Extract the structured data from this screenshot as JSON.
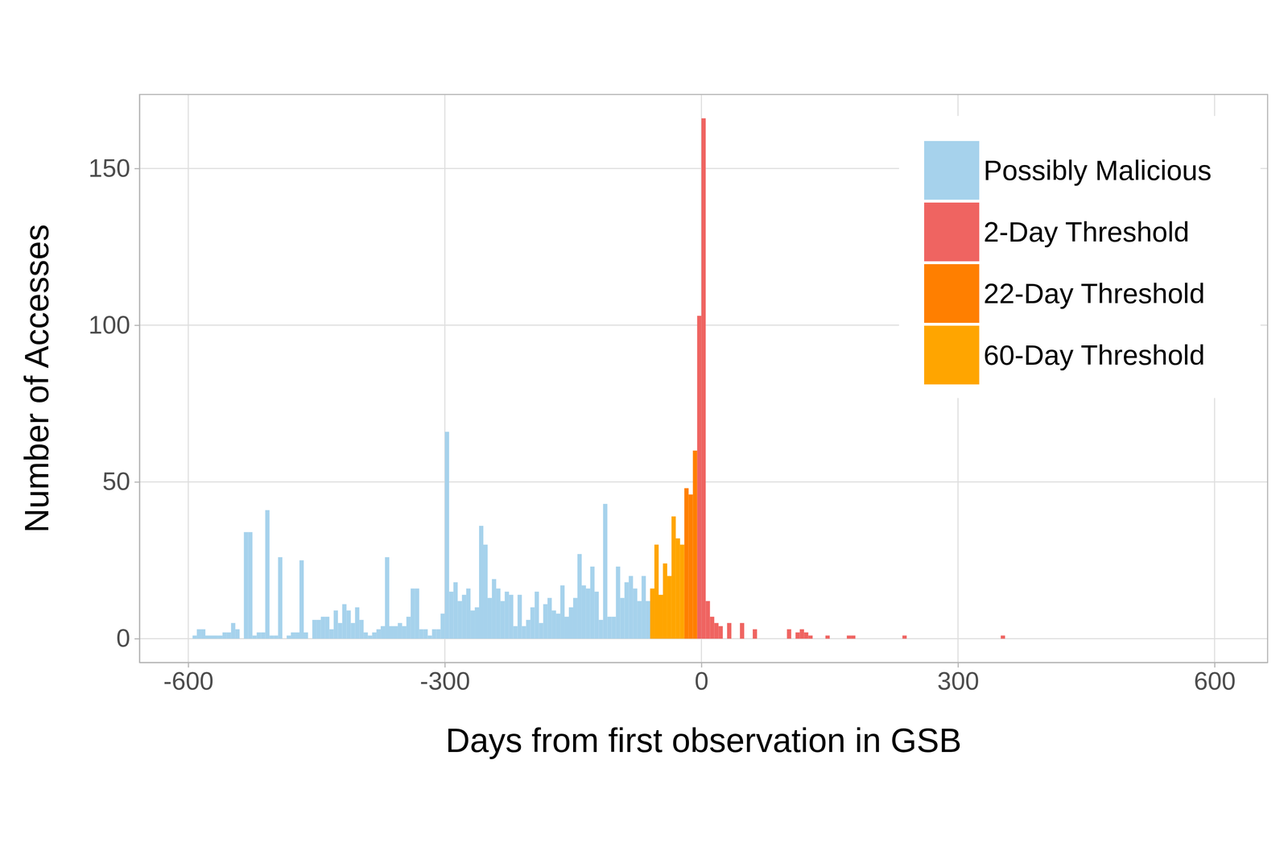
{
  "chart_data": {
    "type": "histogram",
    "x_label": "Days from first observation in GSB",
    "y_label": "Number of Accesses",
    "xlim": [
      -657,
      662
    ],
    "ylim": [
      -7.6,
      173.6
    ],
    "xticks": [
      -600,
      -300,
      0,
      300,
      600
    ],
    "yticks": [
      0,
      50,
      100,
      150
    ],
    "grid": true,
    "legend": "top-right",
    "series": [
      {
        "name": "Possibly Malicious",
        "color": "#a6d2ec",
        "bins": [
          -600,
          -595,
          -590,
          -585,
          -580,
          -575,
          -570,
          -565,
          -560,
          -555,
          -550,
          -545,
          -540,
          -535,
          -530,
          -525,
          -520,
          -515,
          -510,
          -505,
          -500,
          -495,
          -490,
          -485,
          -480,
          -475,
          -470,
          -465,
          -460,
          -455,
          -450,
          -445,
          -440,
          -435,
          -430,
          -425,
          -420,
          -415,
          -410,
          -405,
          -400,
          -395,
          -390,
          -385,
          -380,
          -375,
          -370,
          -365,
          -360,
          -355,
          -350,
          -345,
          -340,
          -335,
          -330,
          -325,
          -320,
          -315,
          -310,
          -305,
          -300,
          -295,
          -290,
          -285,
          -280,
          -275,
          -270,
          -265,
          -260,
          -255,
          -250,
          -245,
          -240,
          -235,
          -230,
          -225,
          -220,
          -215,
          -210,
          -205,
          -200,
          -195,
          -190,
          -185,
          -180,
          -175,
          -170,
          -165,
          -160,
          -155,
          -150,
          -145,
          -140,
          -135,
          -130,
          -125,
          -120,
          -115,
          -110,
          -105,
          -100,
          -95,
          -90,
          -85,
          -80,
          -75,
          -70,
          -65,
          -60
        ],
        "values": [
          0,
          1,
          3,
          3,
          1,
          1,
          1,
          1,
          2,
          2,
          5,
          3,
          0,
          34,
          34,
          1,
          2,
          2,
          41,
          1,
          1,
          26,
          0,
          1,
          2,
          2,
          25,
          2,
          0,
          6,
          6,
          7,
          7,
          3,
          9,
          5,
          11,
          9,
          5,
          10,
          6,
          2,
          1,
          2,
          3,
          4,
          26,
          4,
          4,
          5,
          4,
          7,
          16,
          16,
          3,
          3,
          1,
          3,
          3,
          8,
          66,
          15,
          18,
          12,
          14,
          16,
          9,
          10,
          36,
          30,
          13,
          19,
          16,
          12,
          15,
          14,
          4,
          14,
          4,
          6,
          10,
          15,
          5,
          11,
          13,
          9,
          8,
          17,
          7,
          10,
          13,
          27,
          17,
          16,
          23,
          15,
          6,
          43,
          7,
          7,
          23,
          13,
          18,
          20,
          16,
          12,
          20,
          12
        ]
      },
      {
        "name": "2-Day Threshold",
        "color": "#ef6461",
        "bins": [
          -5,
          0,
          5,
          10,
          15,
          20,
          25,
          30,
          35,
          40,
          45,
          50,
          55,
          60,
          65,
          70,
          75,
          80,
          85,
          90,
          95,
          100,
          105,
          110,
          115,
          120,
          125,
          130,
          135,
          140,
          145,
          150,
          155,
          160,
          165,
          170,
          175,
          180,
          185,
          190,
          195,
          200,
          205,
          210,
          215,
          220,
          225,
          230,
          235,
          240,
          245,
          250,
          255,
          260,
          265,
          270,
          275,
          280,
          285,
          290,
          295,
          300,
          305,
          310,
          315,
          320,
          325,
          330,
          335,
          340,
          345,
          350,
          355
        ],
        "values": [
          103,
          166,
          12,
          7,
          5,
          4,
          0,
          5,
          0,
          0,
          5,
          0,
          0,
          3,
          0,
          0,
          0,
          0,
          0,
          0,
          0,
          3,
          0,
          2,
          3,
          2,
          1,
          0,
          0,
          0,
          1,
          0,
          0,
          0,
          0,
          1,
          1,
          0,
          0,
          0,
          0,
          0,
          0,
          0,
          0,
          0,
          0,
          0,
          1,
          0,
          0,
          0,
          0,
          0,
          0,
          0,
          0,
          0,
          0,
          0,
          0,
          0,
          0,
          0,
          0,
          0,
          0,
          0,
          0,
          0,
          0,
          1
        ]
      },
      {
        "name": "22-Day Threshold",
        "color": "#ff7f00",
        "bins": [
          -20,
          -15,
          -10,
          -5
        ],
        "values": [
          48,
          46,
          60
        ]
      },
      {
        "name": "60-Day Threshold",
        "color": "#ffa500",
        "bins": [
          -60,
          -55,
          -50,
          -45,
          -40,
          -35,
          -30,
          -25,
          -20
        ],
        "values": [
          16,
          30,
          14,
          24,
          20,
          39,
          32,
          30
        ]
      }
    ]
  }
}
